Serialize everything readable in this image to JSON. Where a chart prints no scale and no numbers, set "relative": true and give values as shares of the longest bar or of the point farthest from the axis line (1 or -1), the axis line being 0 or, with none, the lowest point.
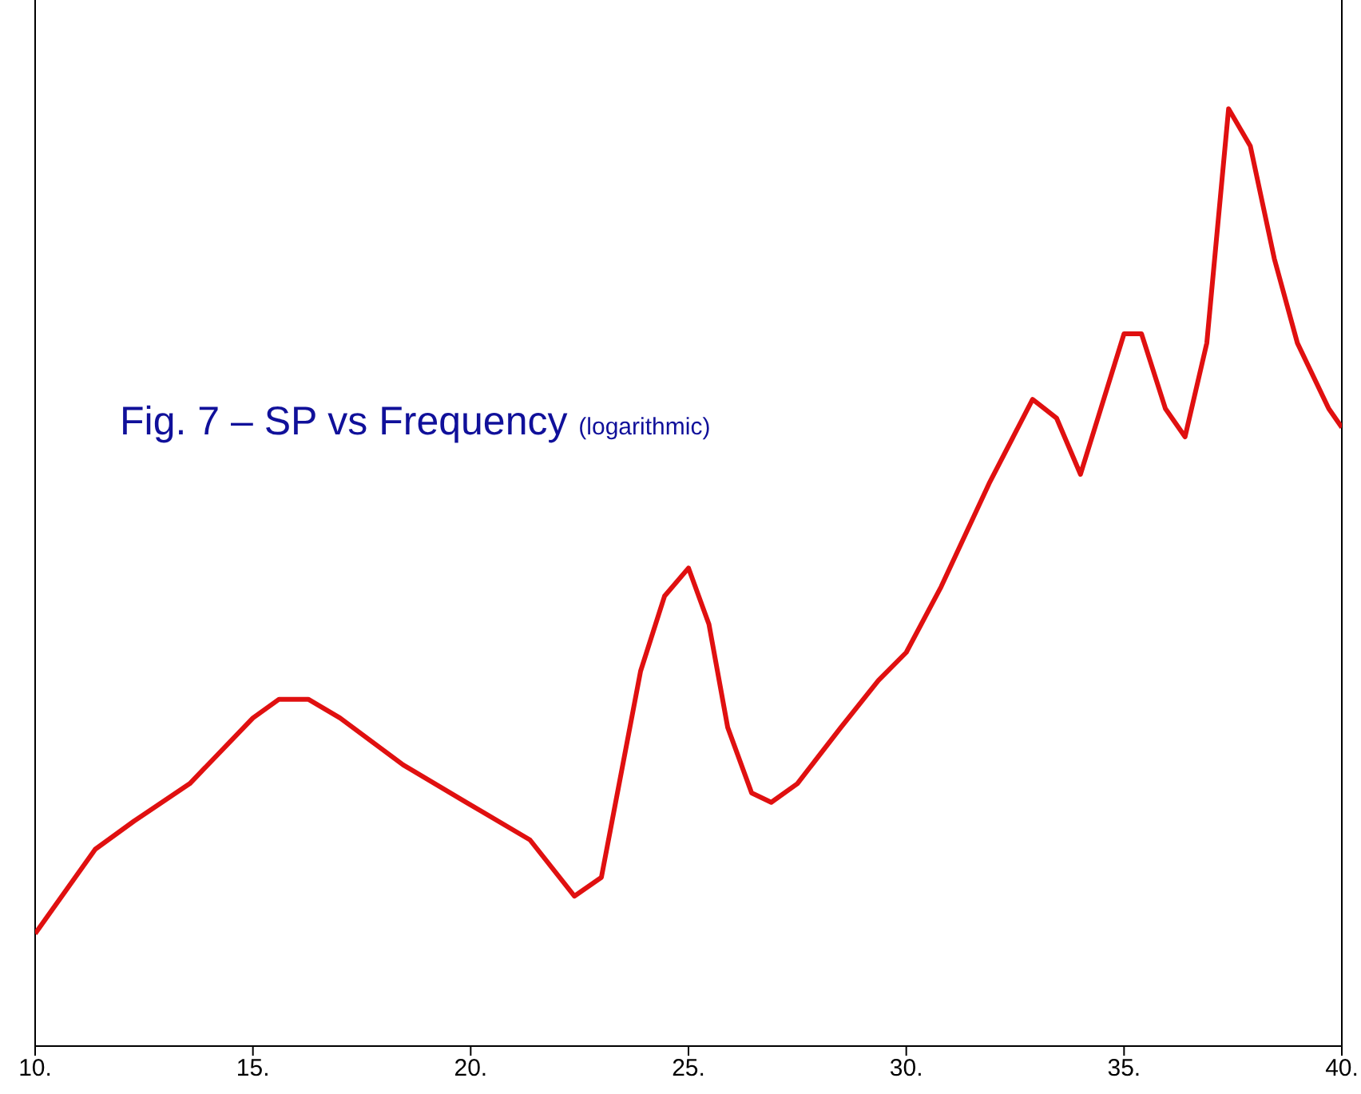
{
  "chart_data": {
    "type": "line",
    "title": "Fig. 7 – SP vs Frequency (logarithmic)",
    "relative": true,
    "x": [
      10,
      11.38,
      12.27,
      13.55,
      15,
      15.6,
      16.27,
      17,
      18.45,
      19.9,
      21.36,
      22.38,
      23,
      23.9,
      24.45,
      25,
      25.47,
      25.9,
      26.45,
      26.9,
      27.5,
      28.5,
      29.36,
      30,
      30.8,
      31.9,
      32.9,
      33.45,
      34,
      35,
      35.4,
      35.95,
      36.4,
      36.9,
      37.4,
      37.9,
      38.45,
      38.98,
      39.7,
      40
    ],
    "series": [
      {
        "color": "#e01010",
        "values": [
          0.12,
          0.21,
          0.24,
          0.28,
          0.35,
          0.37,
          0.37,
          0.35,
          0.3,
          0.26,
          0.22,
          0.16,
          0.18,
          0.4,
          0.48,
          0.51,
          0.45,
          0.34,
          0.27,
          0.26,
          0.28,
          0.34,
          0.39,
          0.42,
          0.49,
          0.6,
          0.69,
          0.67,
          0.61,
          0.76,
          0.76,
          0.68,
          0.65,
          0.75,
          1,
          0.96,
          0.84,
          0.75,
          0.68,
          0.66
        ]
      }
    ],
    "xlim": [
      10,
      40
    ],
    "xticks": [
      {
        "value": 10,
        "label": "10."
      },
      {
        "value": 15,
        "label": "15."
      },
      {
        "value": 20,
        "label": "20."
      },
      {
        "value": 25,
        "label": "25."
      },
      {
        "value": 30,
        "label": "30."
      },
      {
        "value": 35,
        "label": "35."
      },
      {
        "value": 40,
        "label": "40."
      }
    ],
    "grid": false,
    "legend": false,
    "marker": "none",
    "line_style": "solid"
  }
}
